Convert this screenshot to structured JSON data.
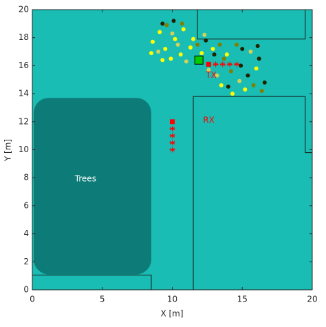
{
  "chart_data": {
    "type": "scatter",
    "xlabel": "X [m]",
    "ylabel": "Y [m]",
    "xlim": [
      0,
      20
    ],
    "ylim": [
      0,
      20
    ],
    "xticks": [
      0,
      5,
      10,
      15,
      20
    ],
    "yticks": [
      0,
      2,
      4,
      6,
      8,
      10,
      12,
      14,
      16,
      18,
      20
    ],
    "background": "#19bdb3",
    "region": {
      "label": "Trees",
      "color": "#0d7b78",
      "x": [
        0.1,
        8.5
      ],
      "y": [
        1.1,
        13.7
      ],
      "label_x": 3.8,
      "label_y": 7.9
    },
    "outlines": [
      {
        "x": [
          11.8,
          11.8,
          19.5,
          19.5
        ],
        "y": [
          20,
          17.9,
          17.9,
          20
        ]
      },
      {
        "x": [
          11.5,
          11.5,
          19.5,
          19.5,
          20
        ],
        "y": [
          0,
          13.8,
          13.8,
          9.8,
          9.8
        ]
      },
      {
        "x": [
          0,
          8.5,
          8.5
        ],
        "y": [
          1.05,
          1.05,
          0
        ]
      }
    ],
    "series": [
      {
        "color": "#ffff00",
        "marker": "circle",
        "x": [
          8.6,
          9.1,
          9.5,
          10.2,
          10.6,
          11.3,
          10.8,
          9.9,
          11.5,
          12.1,
          13.5,
          14.3,
          15.2,
          13.9,
          16.0,
          12.9,
          8.5,
          9.3
        ],
        "y": [
          17.7,
          18.4,
          17.2,
          17.9,
          16.8,
          17.3,
          18.6,
          16.5,
          17.9,
          16.9,
          14.6,
          14.0,
          14.3,
          16.8,
          15.8,
          17.2,
          16.9,
          16.4
        ]
      },
      {
        "color": "#d2d25a",
        "marker": "circle",
        "x": [
          9.0,
          10.0,
          11.0,
          12.3,
          10.4,
          14.8,
          15.6,
          13.2,
          12.6
        ],
        "y": [
          17.0,
          18.3,
          16.3,
          18.2,
          17.5,
          14.9,
          17.0,
          15.3,
          15.7
        ]
      },
      {
        "color": "#7f7f00",
        "marker": "circle",
        "x": [
          9.6,
          10.7,
          13.4,
          14.2,
          15.8,
          16.4,
          14.6,
          13.7,
          11.8
        ],
        "y": [
          18.9,
          19.0,
          17.5,
          15.6,
          14.6,
          14.2,
          17.5,
          16.5,
          17.5
        ]
      },
      {
        "color": "#222200",
        "marker": "circle",
        "x": [
          9.3,
          10.1,
          12.4,
          13.0,
          15.0,
          16.1,
          15.4,
          16.6,
          14.9,
          16.2,
          14.0
        ],
        "y": [
          19.0,
          19.2,
          17.8,
          16.8,
          17.2,
          17.4,
          15.3,
          14.8,
          16.0,
          16.5,
          14.5
        ]
      },
      {
        "color": "#ff0000",
        "marker": "asterisk",
        "x": [
          10,
          10,
          10,
          10,
          13.1,
          13.6,
          14.1,
          14.6
        ],
        "y": [
          11.5,
          11,
          10.5,
          10,
          16.1,
          16.1,
          16.1,
          16.1
        ]
      },
      {
        "color": "#ff0000",
        "marker": "square",
        "x": [
          10,
          12.6
        ],
        "y": [
          12,
          16.1
        ]
      },
      {
        "color": "#00cc00",
        "marker": "bigsquare",
        "x": [
          11.9
        ],
        "y": [
          16.4
        ]
      }
    ],
    "annotations": [
      {
        "text": "RX",
        "x": 12.2,
        "y": 12.1,
        "color": "#ff0000"
      },
      {
        "text": "TX",
        "x": 12.4,
        "y": 15.3,
        "color": "#ff0000"
      }
    ]
  }
}
